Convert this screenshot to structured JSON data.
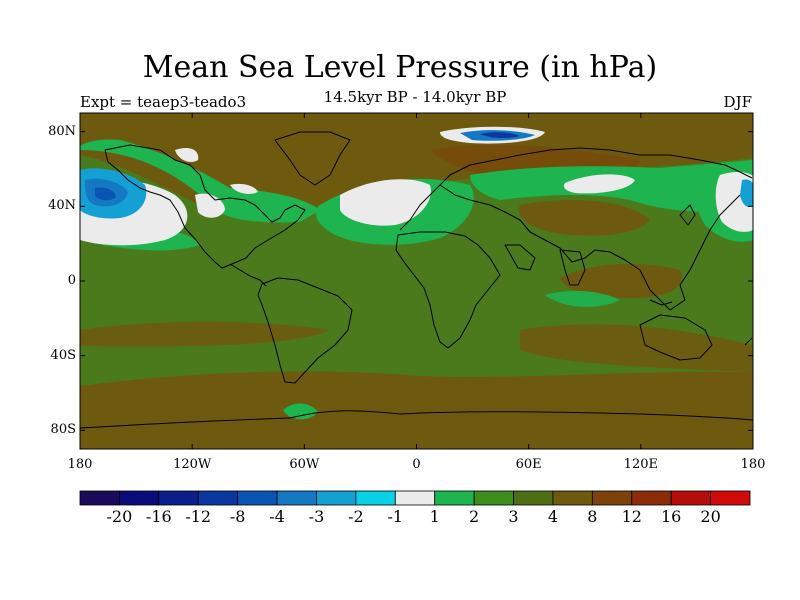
{
  "title": "Mean Sea Level Pressure (in hPa)",
  "subtitle": "14.5kyr BP - 14.0kyr BP",
  "experiment": "Expt = teaep3-teado3",
  "season": "DJF",
  "chart_data": {
    "type": "heatmap",
    "title": "Mean Sea Level Pressure (in hPa)",
    "subtitle": "14.5kyr BP - 14.0kyr BP",
    "projection": "cylindrical equidistant",
    "x_range": [
      -180,
      180
    ],
    "y_range": [
      -90,
      90
    ],
    "x_ticks": [
      "180",
      "120W",
      "60W",
      "0",
      "60E",
      "120E",
      "180"
    ],
    "x_tick_values": [
      -180,
      -120,
      -60,
      0,
      60,
      120,
      180
    ],
    "y_ticks": [
      "80N",
      "40N",
      "0",
      "40S",
      "80S"
    ],
    "y_tick_values": [
      80,
      40,
      0,
      -40,
      -80
    ],
    "colorbar": {
      "labels": [
        "-20",
        "-16",
        "-12",
        "-8",
        "-4",
        "-3",
        "-2",
        "-1",
        "1",
        "2",
        "3",
        "4",
        "8",
        "12",
        "16",
        "20"
      ],
      "colors": [
        "#1a0a5a",
        "#0a0a78",
        "#0a1e8c",
        "#0a37a0",
        "#0a55b4",
        "#1478c3",
        "#14a0d2",
        "#0ad2e6",
        "#ebebeb",
        "#1eb450",
        "#3c8c1e",
        "#4f6e14",
        "#6e5a0f",
        "#7d410a",
        "#8c2d0a",
        "#b40f0a",
        "#d20a0a"
      ]
    }
  }
}
